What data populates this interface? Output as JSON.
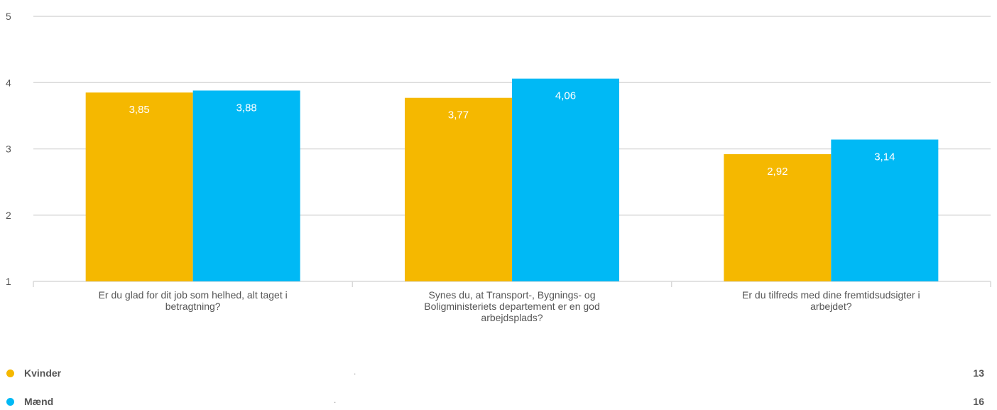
{
  "chart_data": {
    "type": "bar",
    "categories": [
      [
        "Er du glad for dit job som helhed, alt taget i",
        "betragtning?"
      ],
      [
        "Synes du, at Transport-, Bygnings- og",
        "Boligministeriets departement er en god",
        "arbejdsplads?"
      ],
      [
        "Er du tilfreds med dine fremtidsudsigter i",
        "arbejdet?"
      ]
    ],
    "series": [
      {
        "name": "Kvinder",
        "color": "#F5B800",
        "values": [
          3.85,
          3.77,
          2.92
        ],
        "labels": [
          "3,85",
          "3,77",
          "2,92"
        ]
      },
      {
        "name": "Mænd",
        "color": "#00B9F5",
        "values": [
          3.88,
          4.06,
          3.14
        ],
        "labels": [
          "3,88",
          "4,06",
          "3,14"
        ]
      }
    ],
    "ylim": [
      1,
      5
    ],
    "yticks": [
      "1",
      "2",
      "3",
      "4",
      "5"
    ],
    "grid": true,
    "legend_position": "bottom"
  },
  "legend": [
    {
      "name": "Kvinder",
      "color": "#F5B800",
      "dot": ".",
      "count": "13"
    },
    {
      "name": "Mænd",
      "color": "#00B9F5",
      "dot": ".",
      "count": "16"
    }
  ]
}
